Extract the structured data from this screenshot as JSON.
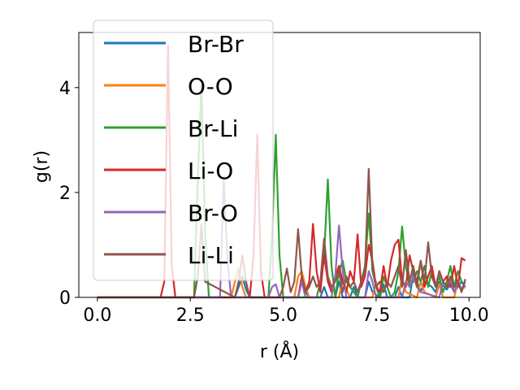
{
  "chart_data": {
    "type": "line",
    "xlabel": "r (Å)",
    "ylabel": "g(r)",
    "xlim": [
      -0.5,
      10.3
    ],
    "ylim": [
      0,
      5.05
    ],
    "xticks": [
      0.0,
      2.5,
      5.0,
      7.5,
      10.0
    ],
    "xtick_labels": [
      "0.0",
      "2.5",
      "5.0",
      "7.5",
      "10.0"
    ],
    "yticks": [
      0,
      2,
      4
    ],
    "ytick_labels": [
      "0",
      "2",
      "4"
    ],
    "grid": false,
    "legend": {
      "placement": "upper-left"
    },
    "series": [
      {
        "name": "Br-Br",
        "color": "#1f77b4",
        "x": [
          0,
          3.7,
          3.8,
          3.9,
          4.0,
          4.1,
          5.4,
          5.5,
          5.6,
          5.7,
          6.0,
          6.1,
          6.2,
          6.4,
          6.5,
          6.6,
          6.8,
          6.9,
          7.0,
          7.2,
          7.3,
          7.4,
          7.6,
          7.7,
          7.8,
          8.0,
          8.1,
          8.2,
          8.4,
          8.5,
          8.6,
          8.7,
          8.8,
          9.0,
          9.1,
          9.2,
          9.4,
          9.5,
          9.6,
          9.8,
          9.9
        ],
        "y": [
          0,
          0,
          0.2,
          0.4,
          0.15,
          0,
          0,
          0.3,
          0.1,
          0,
          0,
          0.2,
          0,
          0,
          0.3,
          0,
          0,
          0.2,
          0,
          0,
          0.3,
          0.1,
          0,
          0.25,
          0,
          0,
          0.2,
          0,
          0,
          0.45,
          0.3,
          0.1,
          0.3,
          0.2,
          0.1,
          0.3,
          0.15,
          0.25,
          0.1,
          0.3,
          0.2
        ]
      },
      {
        "name": "O-O",
        "color": "#ff7f0e",
        "x": [
          0,
          3.6,
          3.7,
          3.8,
          3.9,
          4.0,
          5.3,
          5.4,
          5.5,
          5.6,
          5.7,
          6.5,
          6.6,
          6.7,
          6.8,
          7.4,
          7.5,
          7.6,
          8.1,
          8.2,
          8.3,
          8.6,
          8.7,
          8.8,
          9.1,
          9.2,
          9.3,
          9.6,
          9.7,
          9.8,
          9.9
        ],
        "y": [
          0,
          0,
          0.3,
          0.55,
          0.2,
          0,
          0,
          0.4,
          0.5,
          0.2,
          0,
          0,
          0.35,
          0.15,
          0,
          0,
          0.3,
          0,
          0,
          0.4,
          0.1,
          0,
          0.3,
          0.1,
          0,
          0.25,
          0,
          0,
          0.3,
          0.15,
          0.2
        ]
      },
      {
        "name": "Br-Li",
        "color": "#2ca02c",
        "x": [
          0,
          2.6,
          2.7,
          2.8,
          2.9,
          3.0,
          4.6,
          4.7,
          4.8,
          4.9,
          5.0,
          5.9,
          6.0,
          6.1,
          6.2,
          6.3,
          6.4,
          6.5,
          6.6,
          6.7,
          7.0,
          7.1,
          7.2,
          7.3,
          7.4,
          7.5,
          7.6,
          7.7,
          7.8,
          7.9,
          8.0,
          8.1,
          8.2,
          8.3,
          8.4,
          8.5,
          8.6,
          8.7,
          8.8,
          8.9,
          9.0,
          9.1,
          9.2,
          9.3,
          9.4,
          9.5,
          9.6,
          9.7,
          9.8
        ],
        "y": [
          0,
          0,
          2.2,
          4.05,
          1.2,
          0,
          0,
          1.2,
          3.1,
          0.8,
          0,
          0,
          0.3,
          0.8,
          2.25,
          0.6,
          0,
          0.5,
          0.7,
          0.3,
          0,
          0.3,
          0.6,
          1.6,
          0.5,
          0.2,
          0,
          0.4,
          0.2,
          0,
          0.1,
          0.5,
          1.35,
          0.6,
          0.2,
          0.3,
          0.5,
          0.3,
          0.6,
          0.2,
          0.5,
          0.2,
          0.4,
          0.1,
          0.3,
          0.6,
          0.2,
          0.5,
          0.3
        ]
      },
      {
        "name": "Li-O",
        "color": "#d62728",
        "x": [
          0,
          1.7,
          1.8,
          1.9,
          2.0,
          2.1,
          4.1,
          4.2,
          4.3,
          4.4,
          4.5,
          5.4,
          5.5,
          5.6,
          5.7,
          5.8,
          5.9,
          6.0,
          6.1,
          6.2,
          6.3,
          6.4,
          6.5,
          6.6,
          6.7,
          6.8,
          6.9,
          7.0,
          7.1,
          7.2,
          7.3,
          7.4,
          7.5,
          7.6,
          7.7,
          7.8,
          7.9,
          8.0,
          8.1,
          8.2,
          8.3,
          8.4,
          8.5,
          8.6,
          8.7,
          8.8,
          8.9,
          9.0,
          9.1,
          9.2,
          9.3,
          9.4,
          9.5,
          9.6,
          9.7,
          9.8,
          9.9
        ],
        "y": [
          0,
          0,
          0.3,
          4.8,
          0.6,
          0,
          0,
          0.8,
          3.1,
          0.5,
          0,
          0,
          0.4,
          0.1,
          0.3,
          1.4,
          0.5,
          0.1,
          0.8,
          0.3,
          0.1,
          0.4,
          0.6,
          0.3,
          0.1,
          0.5,
          0.3,
          1.2,
          0.2,
          0.4,
          1.0,
          0.7,
          0.2,
          0.1,
          0.6,
          0.2,
          0.7,
          1.0,
          1.1,
          0.3,
          0.2,
          0.8,
          0.5,
          0.3,
          0.7,
          0.2,
          0.4,
          0.6,
          0.2,
          0.5,
          0.3,
          0.4,
          0.2,
          0.6,
          0.2,
          0.75,
          0.7
        ]
      },
      {
        "name": "Br-O",
        "color": "#9467bd",
        "x": [
          0,
          3.3,
          3.4,
          3.5,
          3.6,
          4.6,
          4.7,
          4.8,
          4.9,
          5.4,
          5.5,
          5.6,
          6.3,
          6.4,
          6.5,
          6.6,
          6.7,
          7.2,
          7.3,
          7.4,
          7.5,
          8.2,
          8.3,
          8.4,
          8.5,
          8.6,
          8.7,
          9.2,
          9.3,
          9.4,
          9.5,
          9.6,
          9.7,
          9.8,
          9.9
        ],
        "y": [
          0,
          0,
          2.3,
          0.7,
          0,
          0,
          0.2,
          0.25,
          0,
          0,
          0.3,
          0,
          0,
          0.4,
          1.37,
          0.5,
          0,
          0,
          0.5,
          0.3,
          0,
          0,
          0.3,
          0.2,
          0.4,
          0.2,
          0.1,
          0,
          0.3,
          0.2,
          0.35,
          0.1,
          0.3,
          0.15,
          0.3
        ]
      },
      {
        "name": "Li-Li",
        "color": "#8c564b",
        "x": [
          0,
          2.6,
          2.7,
          2.8,
          2.9,
          3.7,
          3.8,
          3.9,
          4.0,
          4.1,
          4.9,
          5.0,
          5.1,
          5.2,
          5.3,
          5.4,
          5.5,
          5.6,
          5.7,
          5.8,
          5.9,
          6.0,
          6.1,
          6.2,
          6.3,
          6.4,
          6.5,
          6.6,
          6.7,
          6.8,
          6.9,
          7.0,
          7.1,
          7.2,
          7.3,
          7.4,
          7.5,
          7.6,
          7.7,
          7.8,
          7.9,
          8.0,
          8.1,
          8.2,
          8.3,
          8.4,
          8.5,
          8.6,
          8.7,
          8.8,
          8.9,
          9.0,
          9.1,
          9.2,
          9.3,
          9.4,
          9.5,
          9.6,
          9.7,
          9.8,
          9.9
        ],
        "y": [
          0,
          0,
          0.4,
          1.4,
          0.3,
          0,
          0.3,
          0.8,
          0.3,
          0,
          0,
          0.2,
          0.55,
          0.1,
          0.3,
          1.3,
          0.4,
          0.1,
          0.2,
          0.4,
          0.2,
          0.3,
          1.12,
          0.4,
          0.2,
          0.3,
          0.5,
          0.1,
          0.4,
          0.2,
          0.3,
          0.1,
          0.3,
          0.5,
          2.45,
          0.6,
          0.2,
          0.3,
          0.1,
          0.3,
          0.2,
          0.4,
          0.6,
          0.2,
          0.9,
          0.3,
          0.6,
          0.2,
          0.7,
          0.3,
          1.05,
          0.4,
          0.2,
          0.5,
          0.3,
          0.2,
          0.4,
          0.2,
          0.3,
          0.1,
          0.35
        ]
      }
    ]
  }
}
